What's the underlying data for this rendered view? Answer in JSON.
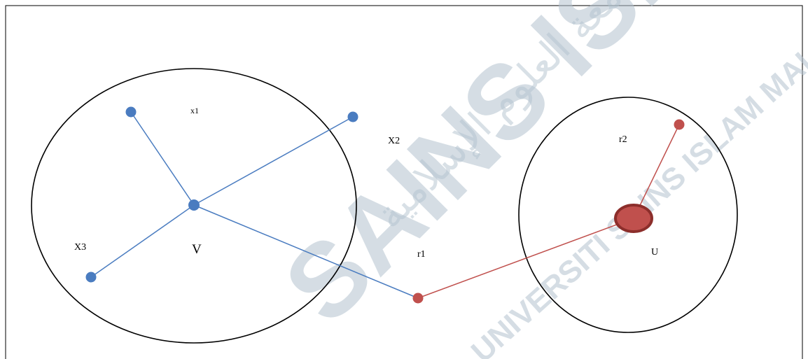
{
  "diagram": {
    "colors": {
      "blue": "#4a7cc0",
      "red": "#c0504d",
      "red_dark": "#8c2e2b",
      "outline": "#000000",
      "watermark": "#b3c3cf"
    },
    "nodes": {
      "v_center": "V",
      "u_center": "U"
    },
    "labels": {
      "x1": "x1",
      "x2": "X2",
      "x3": "X3",
      "v": "V",
      "r1": "r1",
      "r2": "r2",
      "u": "U"
    },
    "watermark": {
      "main": "SAINS ISLAM",
      "sub": "UNIVERSITI SAINS ISLAM MALAYSIA",
      "arabic": "جامعة العلوم الإسلامية"
    }
  }
}
